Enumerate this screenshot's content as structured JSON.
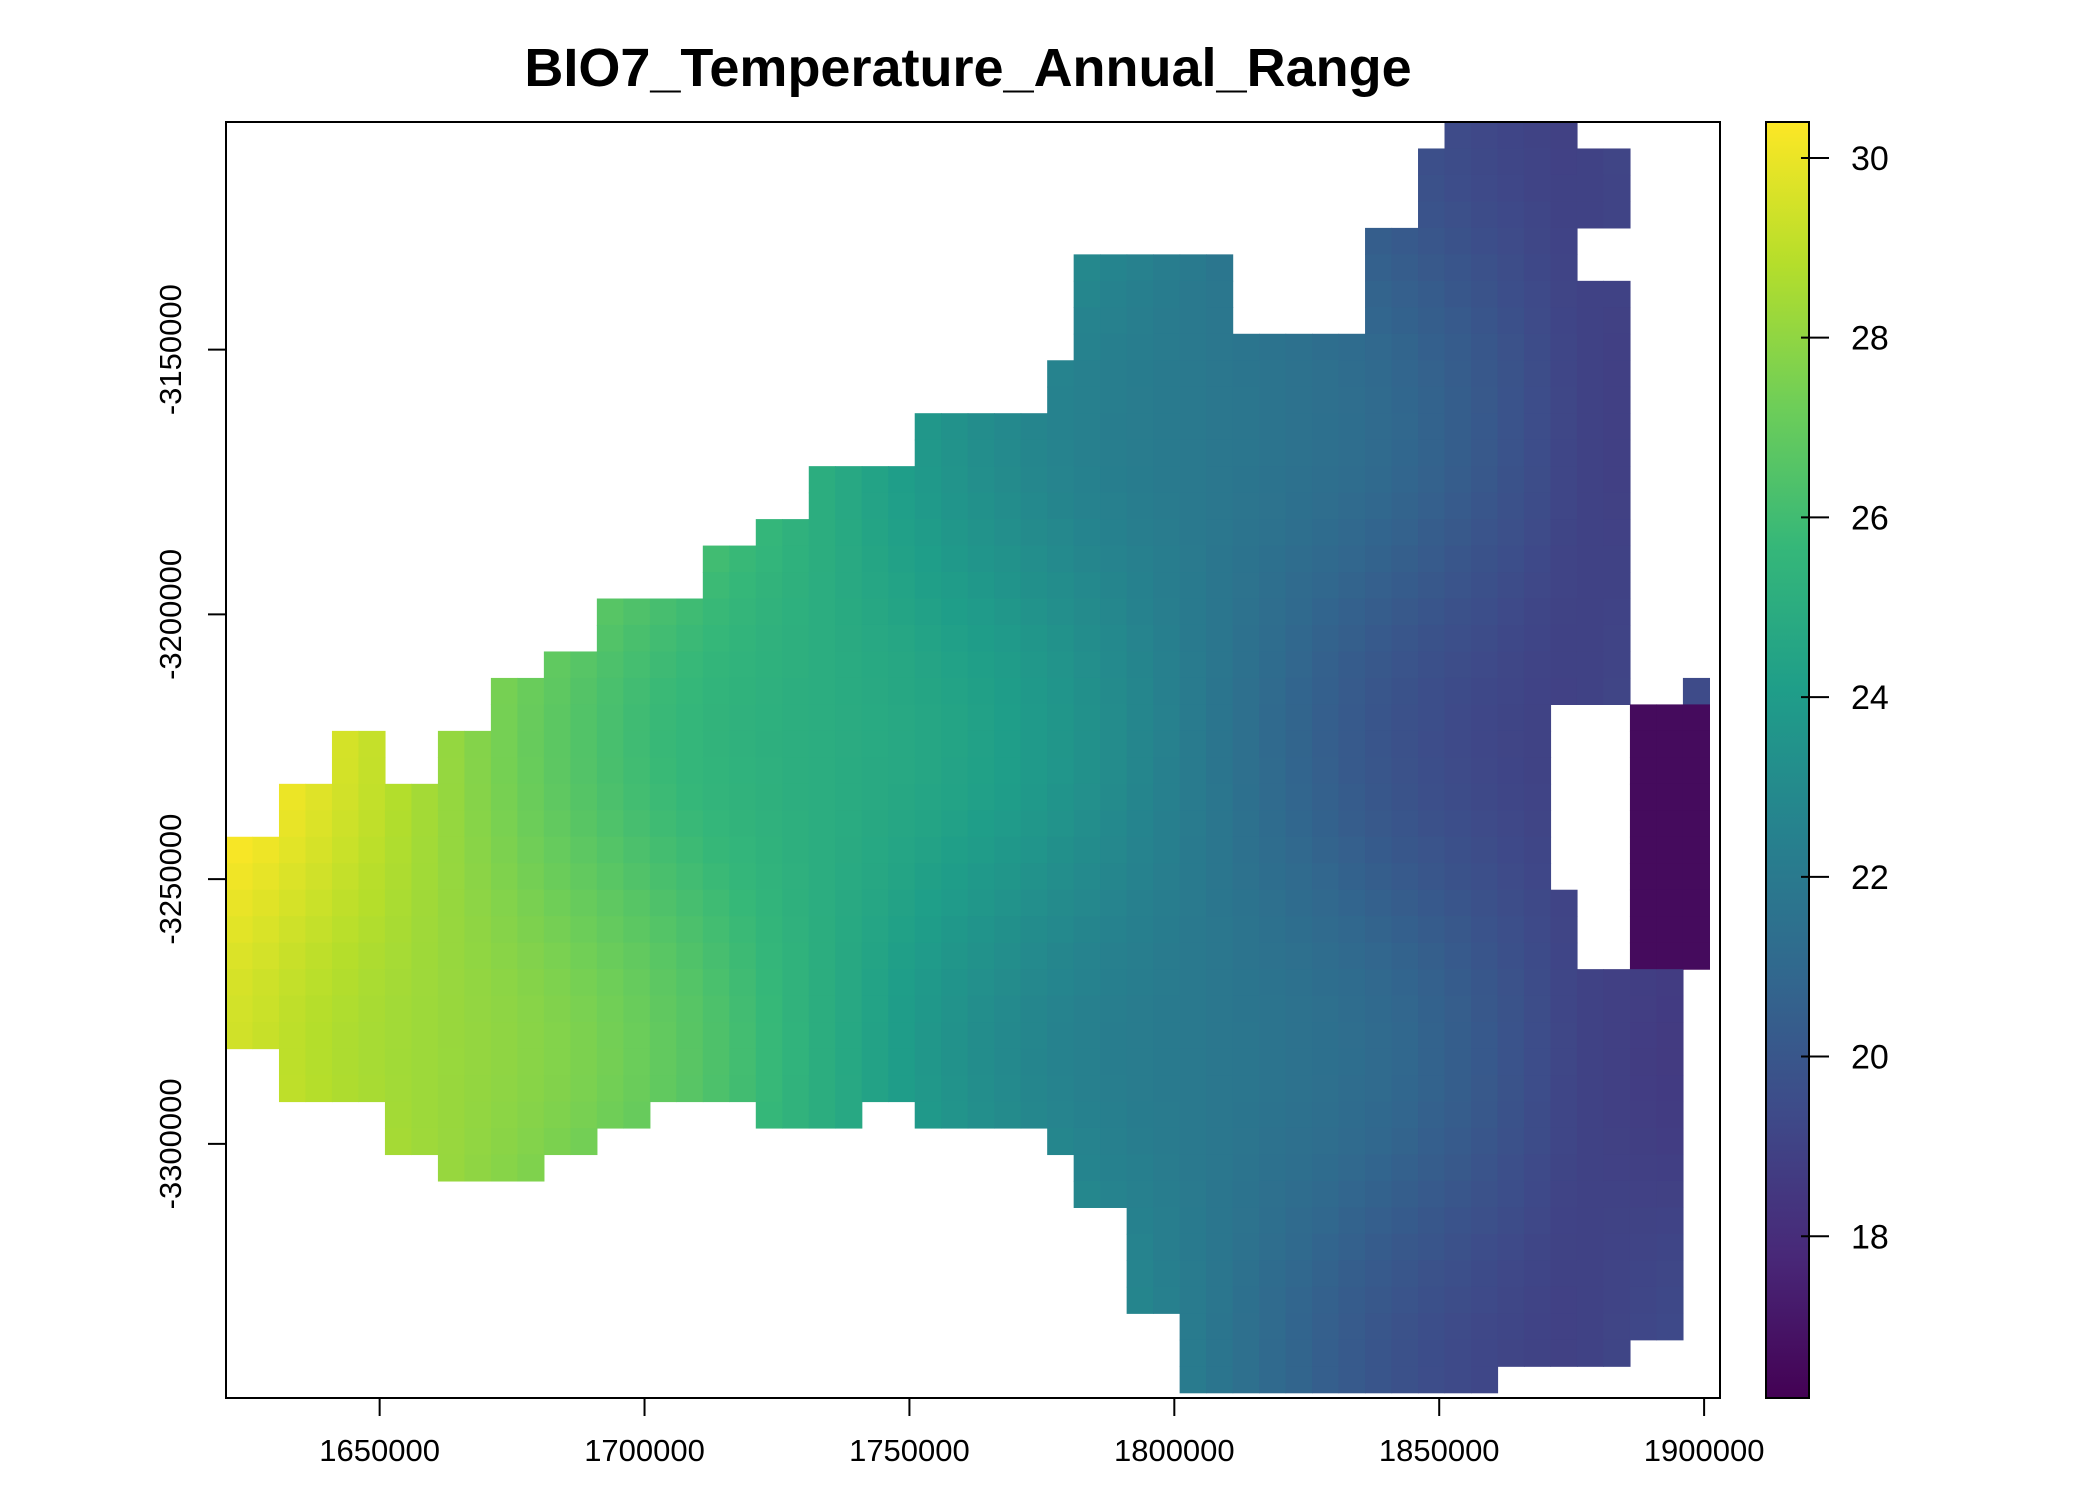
{
  "chart_data": {
    "type": "heatmap",
    "title": "BIO7_Temperature_Annual_Range",
    "xlabel": "",
    "ylabel": "",
    "xlim": [
      1621000,
      1903000
    ],
    "ylim": [
      -3348000,
      -3107000
    ],
    "cell_size_x": 5000,
    "cell_size_y": 5000,
    "x_ticks": [
      1650000,
      1700000,
      1750000,
      1800000,
      1850000,
      1900000
    ],
    "x_tick_labels": [
      "1650000",
      "1700000",
      "1750000",
      "1800000",
      "1850000",
      "1900000"
    ],
    "y_ticks": [
      -3150000,
      -3200000,
      -3250000,
      -3300000
    ],
    "y_tick_labels": [
      "-3150000",
      "-3200000",
      "-3250000",
      "-3300000"
    ],
    "legend": {
      "position": "right",
      "colormap": "viridis",
      "min": 16.2,
      "max": 30.4,
      "ticks": [
        30,
        28,
        26,
        24,
        22,
        20,
        18
      ],
      "tick_labels": [
        "30",
        "28",
        "26",
        "24",
        "22",
        "20",
        "18"
      ]
    },
    "value_range": [
      16.2,
      30.4
    ],
    "value_gradient": "values decrease west to east: about 30 at the western edge (x≈1625000) to about 19 along the eastern edge (x≈1870000), with a patch of about 16.5 near x≈1890000–1900000, y≈-3220000 to -3260000"
  },
  "colors": {
    "viridis_stops": [
      "#440154",
      "#482878",
      "#3e4a89",
      "#31688e",
      "#26828e",
      "#1f9e89",
      "#35b779",
      "#6ece58",
      "#b5de2b",
      "#fde725"
    ]
  }
}
